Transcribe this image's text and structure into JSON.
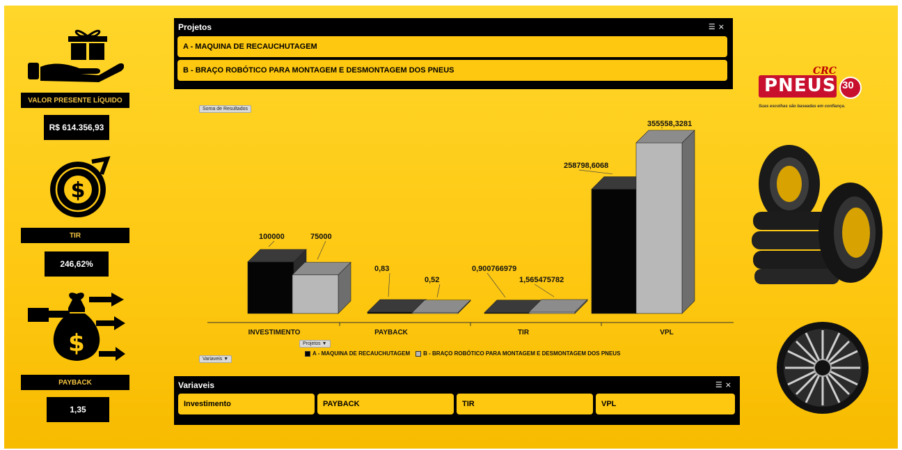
{
  "kpis": {
    "vpl": {
      "label": "VALOR PRESENTE LÍQUIDO",
      "value": "R$ 614.356,93"
    },
    "tir": {
      "label": "TIR",
      "value": "246,62%"
    },
    "payback": {
      "label": "PAYBACK",
      "value": "1,35"
    }
  },
  "projetos_slicer": {
    "title": "Projetos",
    "items": [
      "A - MAQUINA DE RECAUCHUTAGEM",
      "B -  BRAÇO ROBÓTICO PARA MONTAGEM E DESMONTAGEM DOS PNEUS"
    ]
  },
  "variaveis_slicer": {
    "title": "Variaveis",
    "items": [
      "Investimento",
      "PAYBACK",
      "TIR",
      "VPL"
    ]
  },
  "chart_buttons": {
    "soma": "Soma de Resultados",
    "projetos": "Projetos ▼",
    "variaveis": "Variaveis ▼"
  },
  "brand": {
    "crc": "CRC",
    "name": "PNEUS",
    "years": "30",
    "tagline": "Suas escolhas são baseadas em confiança."
  },
  "chart_data": {
    "type": "bar",
    "categories": [
      "INVESTIMENTO",
      "PAYBACK",
      "TIR",
      "VPL"
    ],
    "series": [
      {
        "name": "A - MAQUINA DE RECAUCHUTAGEM",
        "values": [
          100000,
          0.83,
          0.900766979,
          258798.6068
        ],
        "labels": [
          "100000",
          "0,83",
          "0,900766979",
          "258798,6068"
        ]
      },
      {
        "name": "B -  BRAÇO ROBÓTICO PARA MONTAGEM E DESMONTAGEM DOS PNEUS",
        "values": [
          75000,
          0.52,
          1.565475782,
          355558.3281
        ],
        "labels": [
          "75000",
          "0,52",
          "1,565475782",
          "355558,3281"
        ]
      }
    ],
    "legend": "bottom",
    "colors": {
      "a": "#000000",
      "b": "#b8b8b8"
    }
  }
}
